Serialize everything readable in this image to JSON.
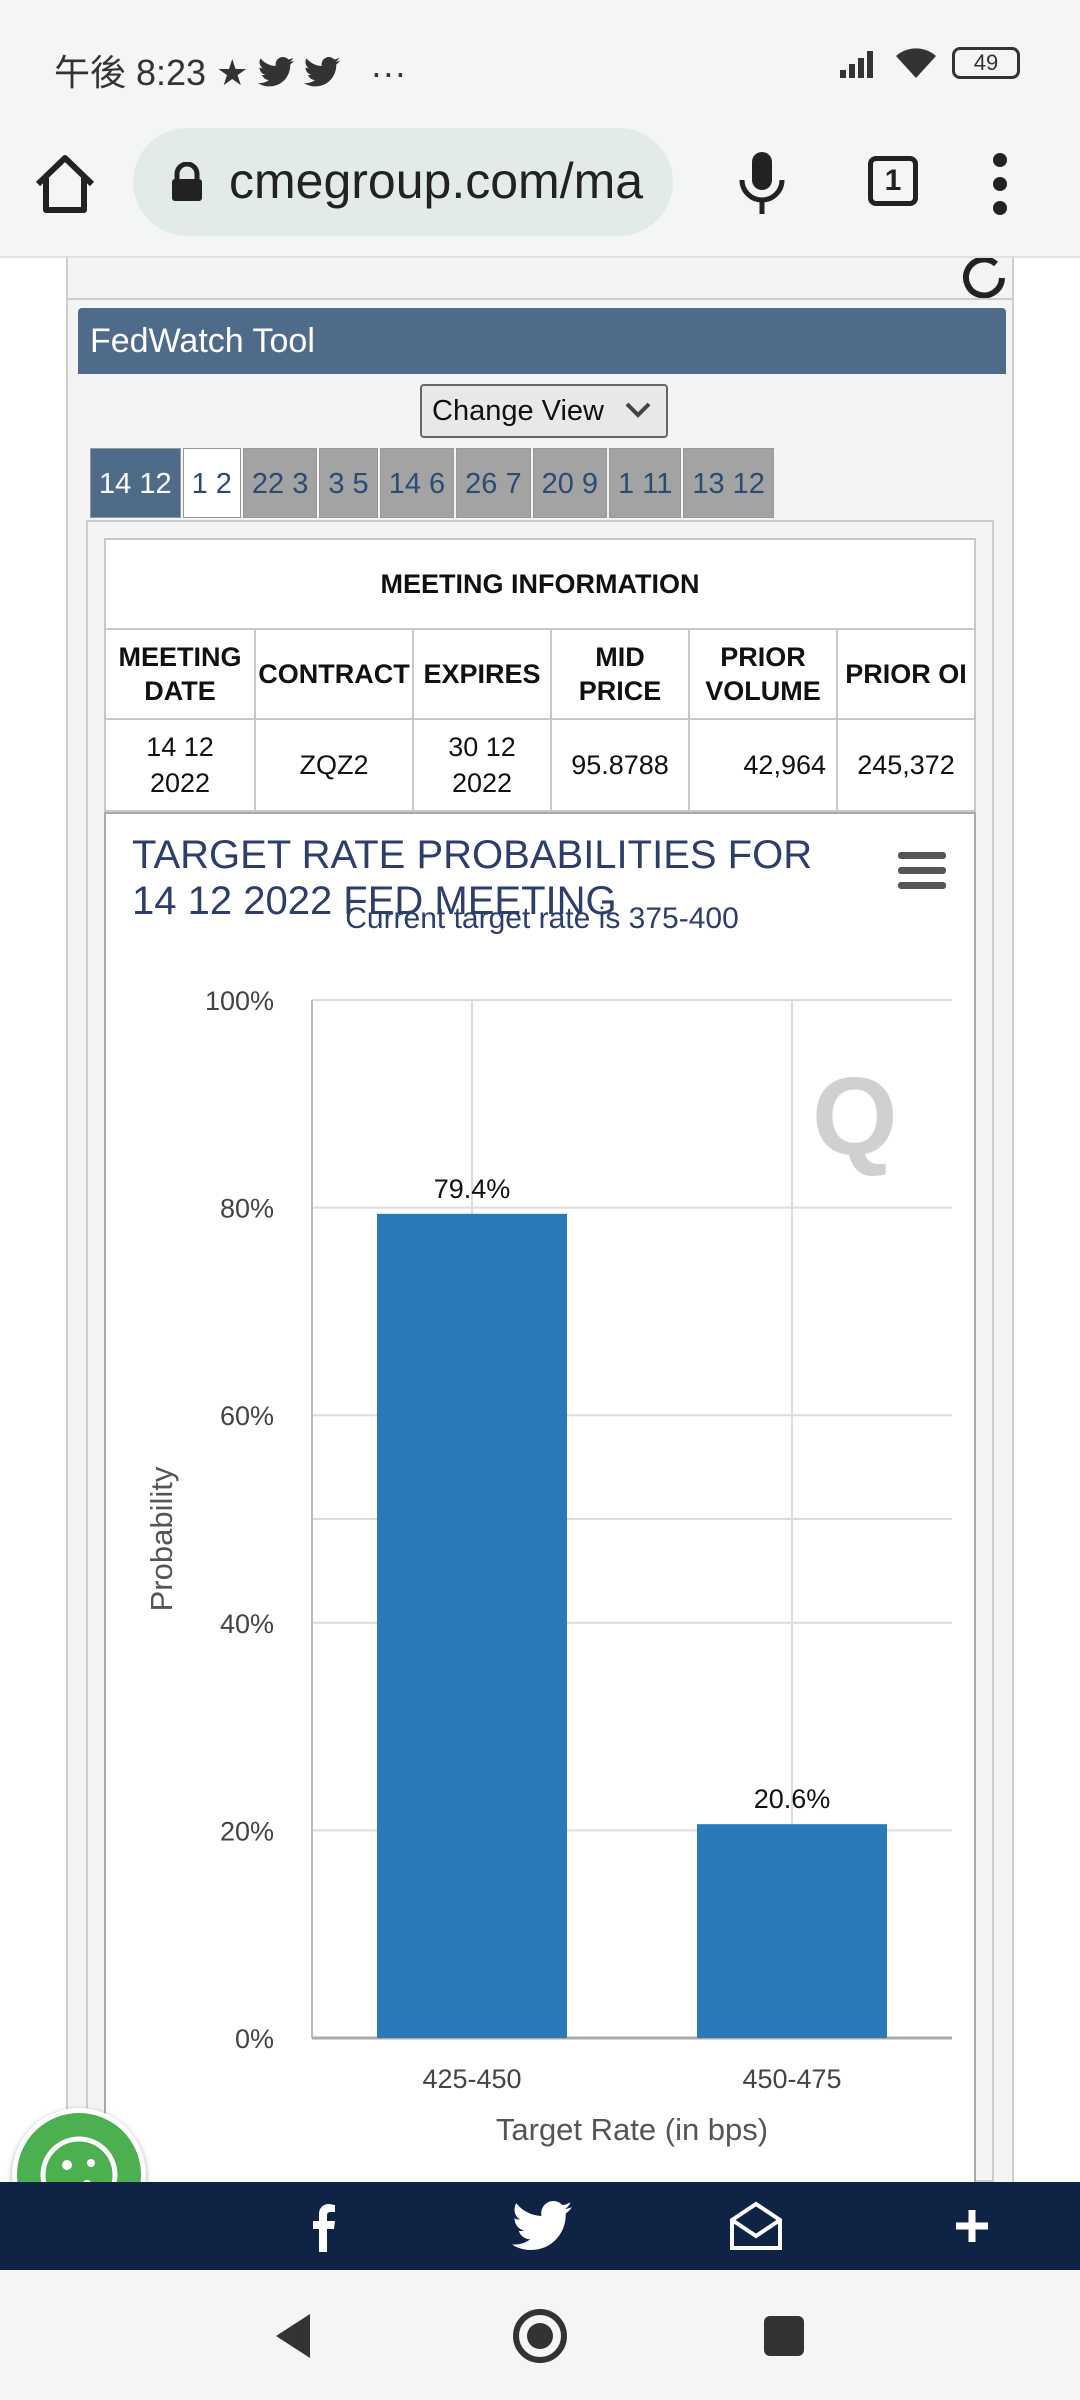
{
  "status_bar": {
    "time": "午後 8:23",
    "more": "···",
    "battery": "49"
  },
  "browser": {
    "url": "cmegroup.com/ma",
    "tab_count": "1"
  },
  "panel": {
    "title": "FedWatch Tool",
    "change_view": "Change View",
    "date_tabs": [
      "14 12",
      "1 2",
      "22 3",
      "3 5",
      "14 6",
      "26 7",
      "20 9",
      "1 11",
      "13 12"
    ]
  },
  "meeting_info": {
    "title": "MEETING INFORMATION",
    "headers": [
      "MEETING DATE",
      "CONTRACT",
      "EXPIRES",
      "MID PRICE",
      "PRIOR VOLUME",
      "PRIOR OI"
    ],
    "row": [
      "14 12 2022",
      "ZQZ2",
      "30 12 2022",
      "95.8788",
      "42,964",
      "245,372"
    ]
  },
  "chart_data": {
    "type": "bar",
    "title": "TARGET RATE PROBABILITIES FOR 14 12 2022 FED MEETING",
    "subtitle": "Current target rate is 375-400",
    "categories": [
      "425-450",
      "450-475"
    ],
    "values": [
      79.4,
      20.6
    ],
    "data_labels": [
      "79.4%",
      "20.6%"
    ],
    "xlabel": "Target Rate (in bps)",
    "ylabel": "Probability",
    "ylim": [
      0,
      100
    ],
    "yticks": [
      "0%",
      "20%",
      "40%",
      "60%",
      "80%",
      "100%"
    ],
    "bar_color": "#2a7ab8",
    "grid": true
  }
}
